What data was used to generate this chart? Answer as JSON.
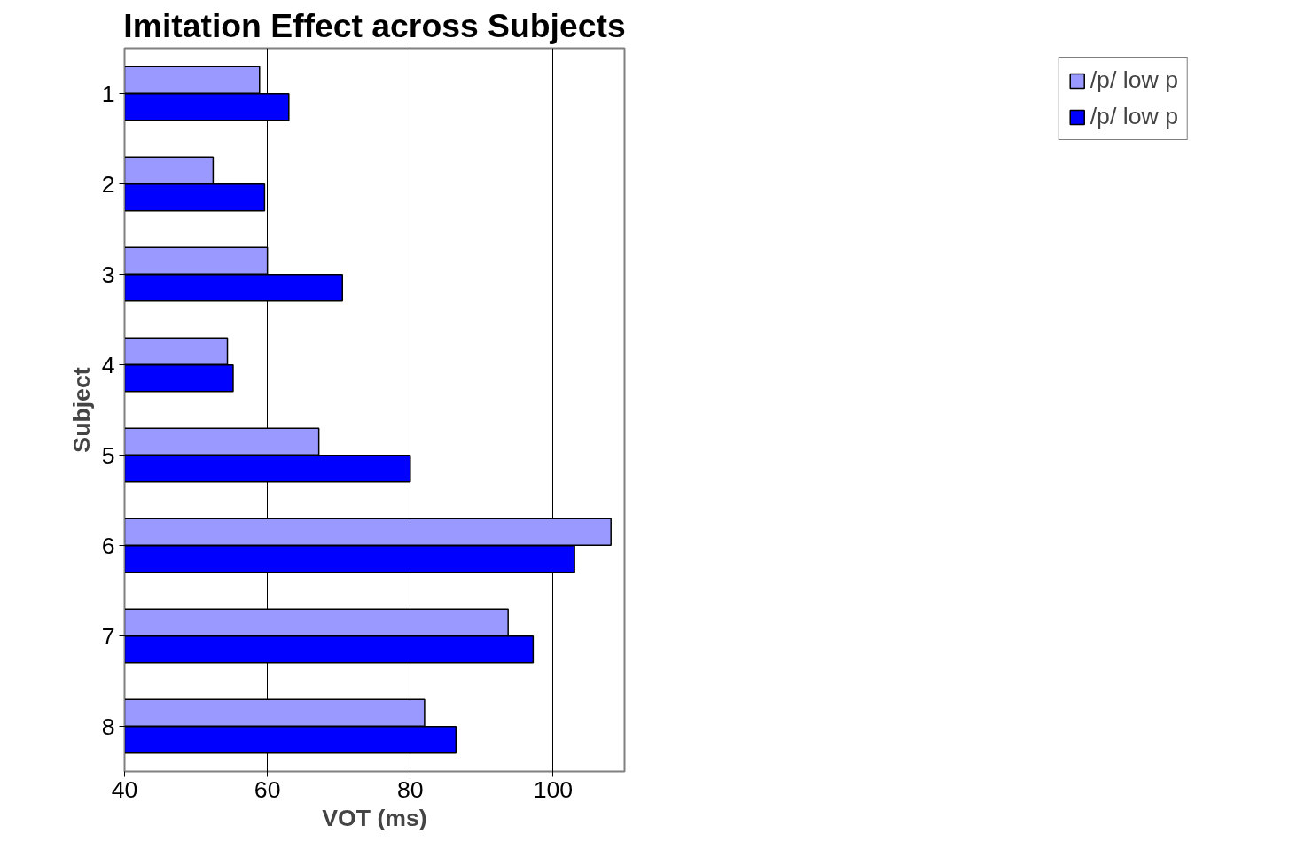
{
  "chart_data": {
    "type": "bar",
    "orientation": "horizontal",
    "title": "Imitation Effect across Subjects",
    "xlabel": "VOT (ms)",
    "ylabel": "Subject",
    "categories": [
      "1",
      "2",
      "3",
      "4",
      "5",
      "6",
      "7",
      "8"
    ],
    "series": [
      {
        "name": "/p/ low p",
        "color": "#9999ff",
        "values": [
          58.9,
          52.4,
          60.0,
          54.4,
          67.2,
          108.1,
          93.7,
          82.0
        ]
      },
      {
        "name": "/p/ low p",
        "color": "#0000ff",
        "values": [
          63.0,
          59.6,
          70.5,
          55.2,
          80.0,
          103.0,
          97.2,
          86.4
        ]
      }
    ],
    "xlim": [
      40,
      110
    ],
    "xticks": [
      40,
      60,
      80,
      100
    ],
    "grid": "x",
    "legend": "right"
  }
}
